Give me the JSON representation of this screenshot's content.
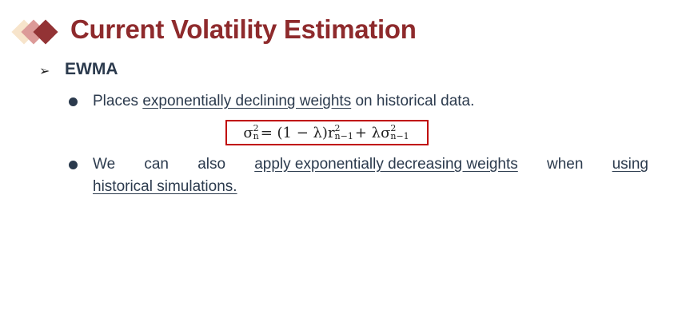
{
  "title": "Current Volatility Estimation",
  "colors": {
    "title": "#8e2a2c",
    "text": "#2b3a4d",
    "formula_border": "#c00000"
  },
  "heading": {
    "icon": "arrowhead-bullet-icon",
    "label": "EWMA"
  },
  "bullet1": {
    "pre": "Places ",
    "link": "exponentially declining weights",
    "post": " on historical data."
  },
  "formula": {
    "sigma": "σ",
    "sup": "2",
    "sub_n": "n",
    "eq": " = (1 − λ)r",
    "sub_n1": "n−1",
    "plus": " + λσ"
  },
  "bullet2": {
    "w1": "We",
    "w2": "can",
    "w3": "also",
    "link1": "apply exponentially decreasing weights",
    "w4": "when",
    "link2a": "using",
    "link2b": "historical simulations."
  }
}
